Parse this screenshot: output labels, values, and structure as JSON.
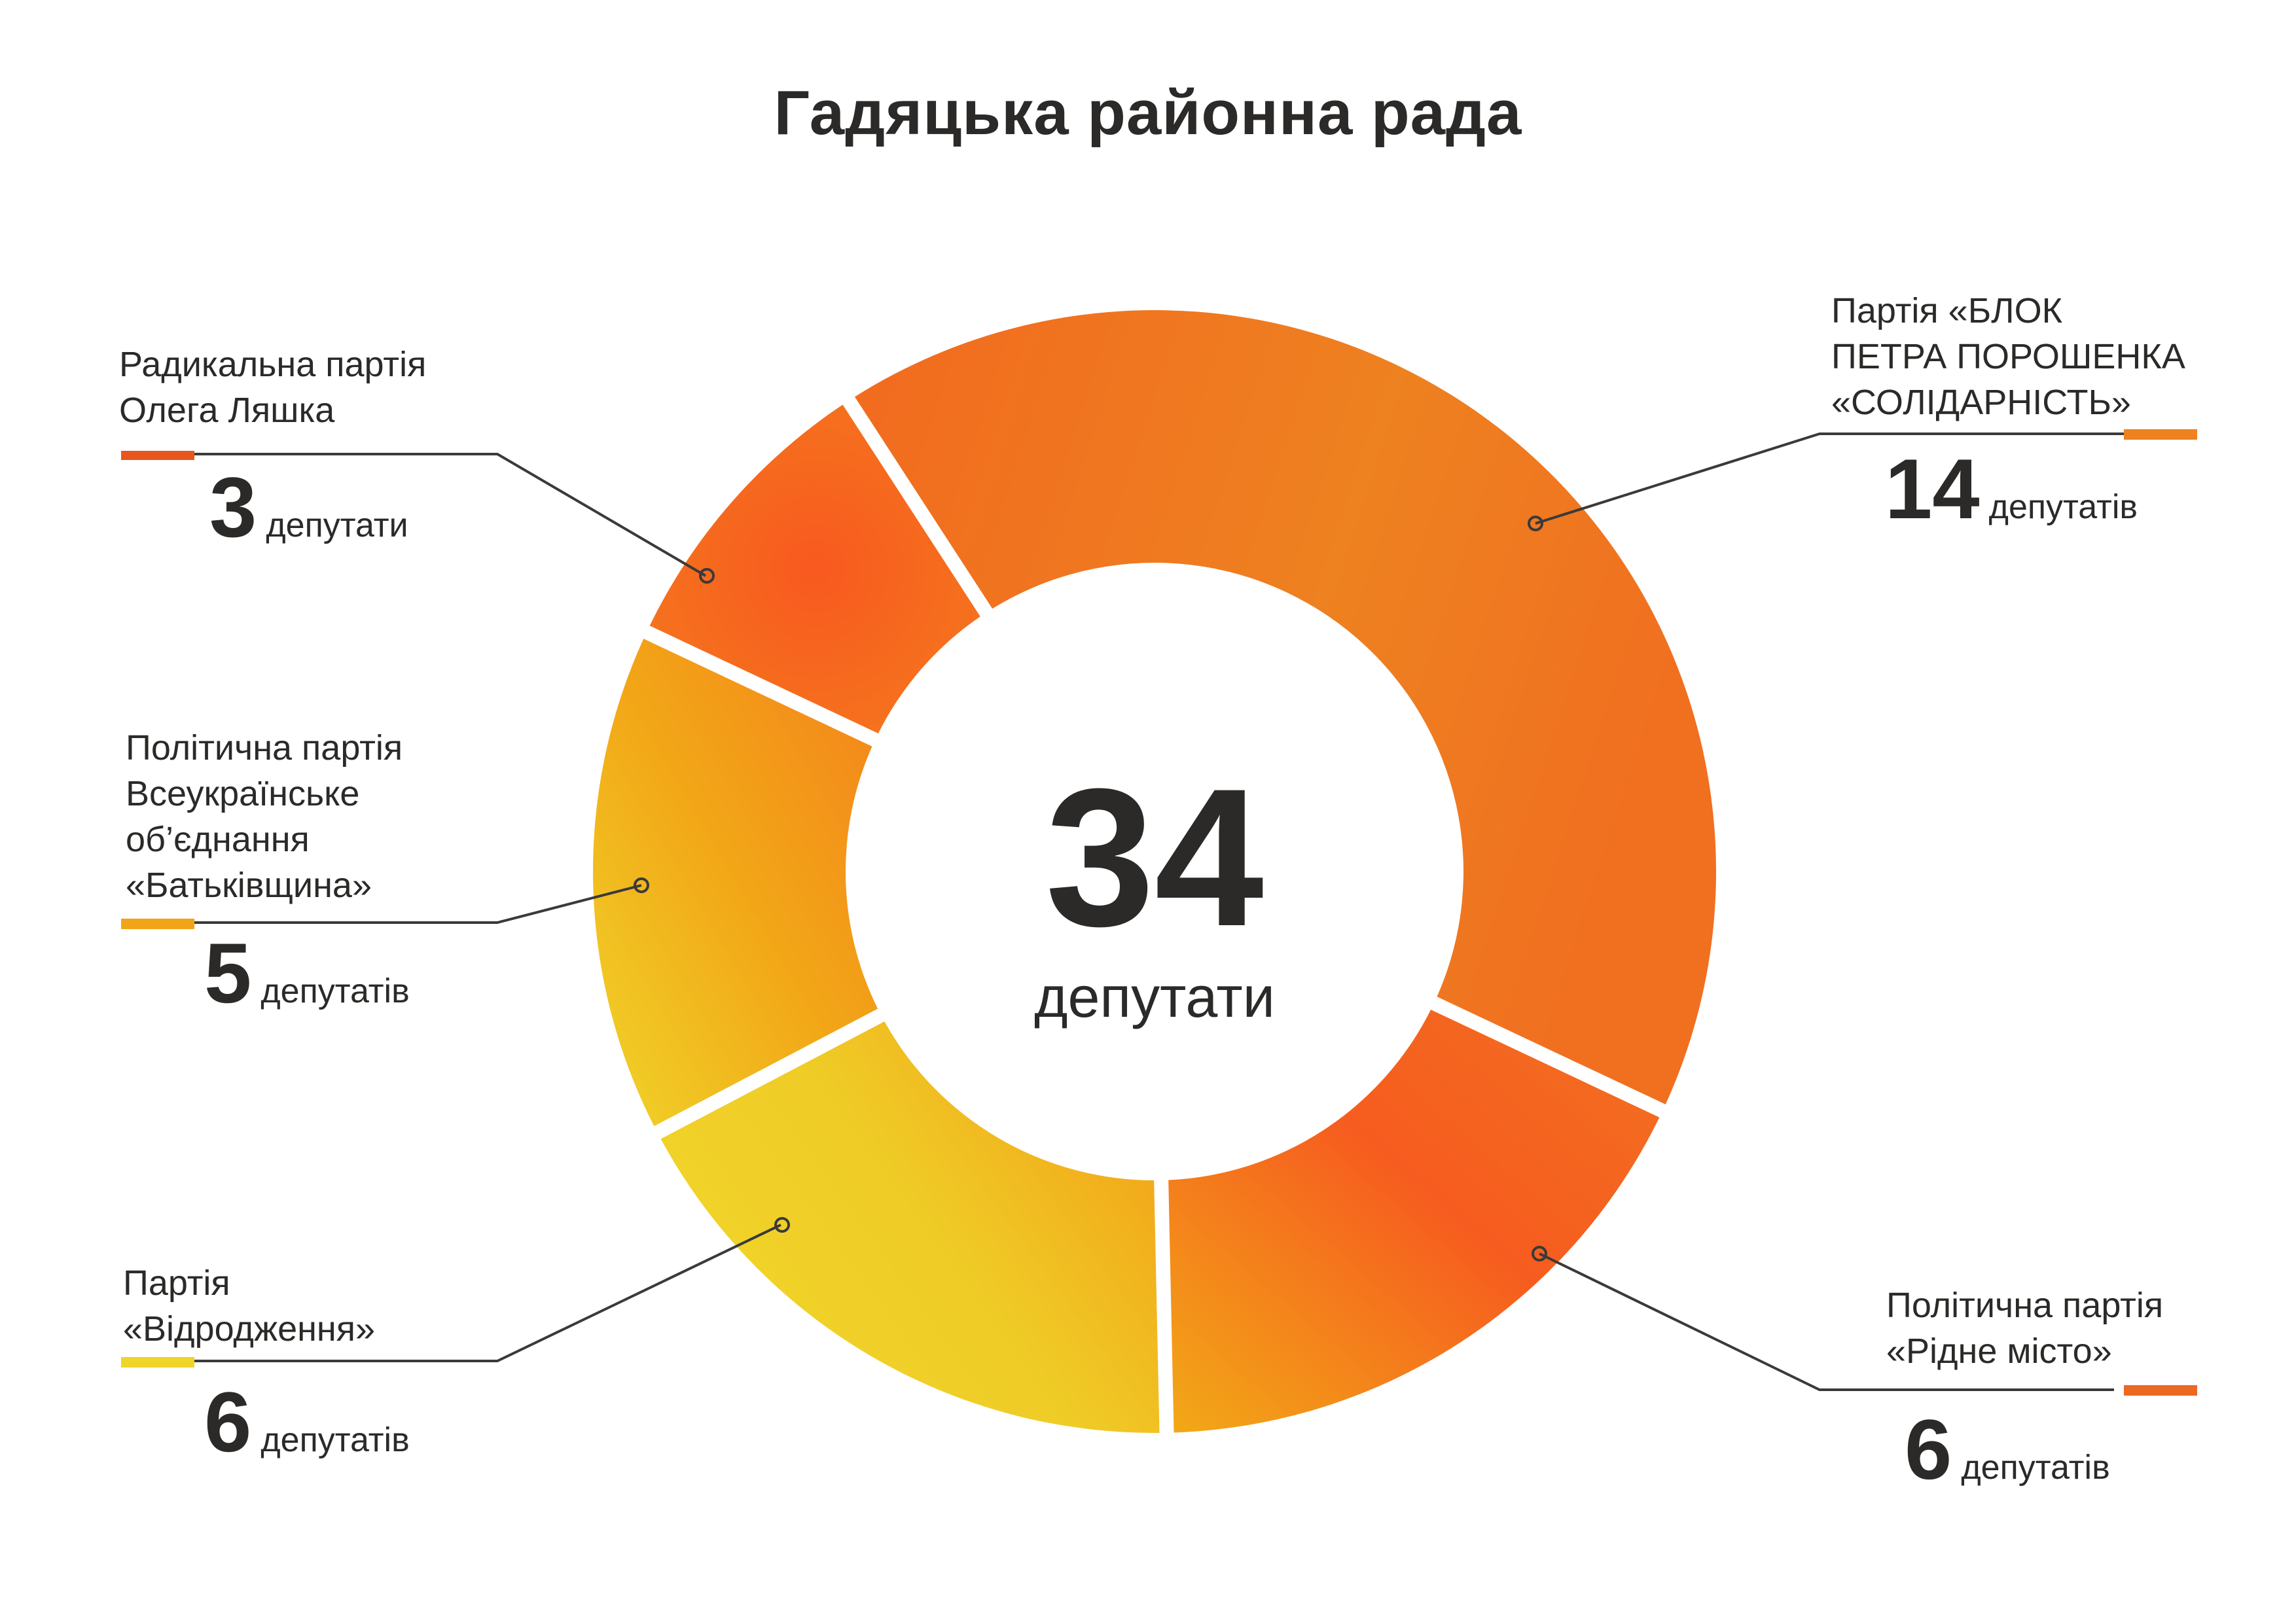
{
  "title": "Гадяцька районна рада",
  "center": {
    "total": "34",
    "unit": "депутати"
  },
  "parties": [
    {
      "id": "radical",
      "name": "Радикальна партія Олега Ляшка",
      "lines": [
        "Радикальна партія",
        "Олега Ляшка"
      ],
      "count": "3",
      "unit": "депутати",
      "color": "#E8561E"
    },
    {
      "id": "bpp",
      "name": "Партія «БЛОК ПЕТРА ПОРОШЕНКА «СОЛІДАРНІСТЬ»",
      "lines": [
        "Партія «БЛОК",
        "ПЕТРА ПОРОШЕНКА",
        "«СОЛІДАРНІСТЬ»"
      ],
      "count": "14",
      "unit": "депутатів",
      "color": "#EE8120"
    },
    {
      "id": "ridne",
      "name": "Політична партія «Рідне місто»",
      "lines": [
        "Політична партія",
        "«Рідне місто»"
      ],
      "count": "6",
      "unit": "депутатів",
      "color": "#EB6A22"
    },
    {
      "id": "vidrodzhennia",
      "name": "Партія «Відродження»",
      "lines": [
        "Партія",
        "«Відродження»"
      ],
      "count": "6",
      "unit": "депутатів",
      "color": "#EFD42A"
    },
    {
      "id": "batkivshchyna",
      "name": "Політична партія Всеукраїнське об’єднання «Батьківщина»",
      "lines": [
        "Політична партія",
        "Всеукраїнське",
        "об’єднання",
        "«Батьківщина»"
      ],
      "count": "5",
      "unit": "депутатів",
      "color": "#F1A417"
    }
  ],
  "chart_data": {
    "type": "pie",
    "subtype": "donut",
    "title": "Гадяцька районна рада",
    "center_label": "34 депутати",
    "categories": [
      "Партія «БЛОК ПЕТРА ПОРОШЕНКА «СОЛІДАРНІСТЬ»",
      "Політична партія «Рідне місто»",
      "Партія «Відродження»",
      "Політична партія Всеукраїнське об’єднання «Батьківщина»",
      "Радикальна партія Олега Ляшка"
    ],
    "values": [
      14,
      6,
      6,
      5,
      3
    ],
    "total": 34,
    "unit": "депутати",
    "colors": [
      "#EE8120",
      "#F65F1F",
      "#EFD42A",
      "#F1A417",
      "#F65F1F"
    ],
    "legend_position": "callouts around chart"
  }
}
